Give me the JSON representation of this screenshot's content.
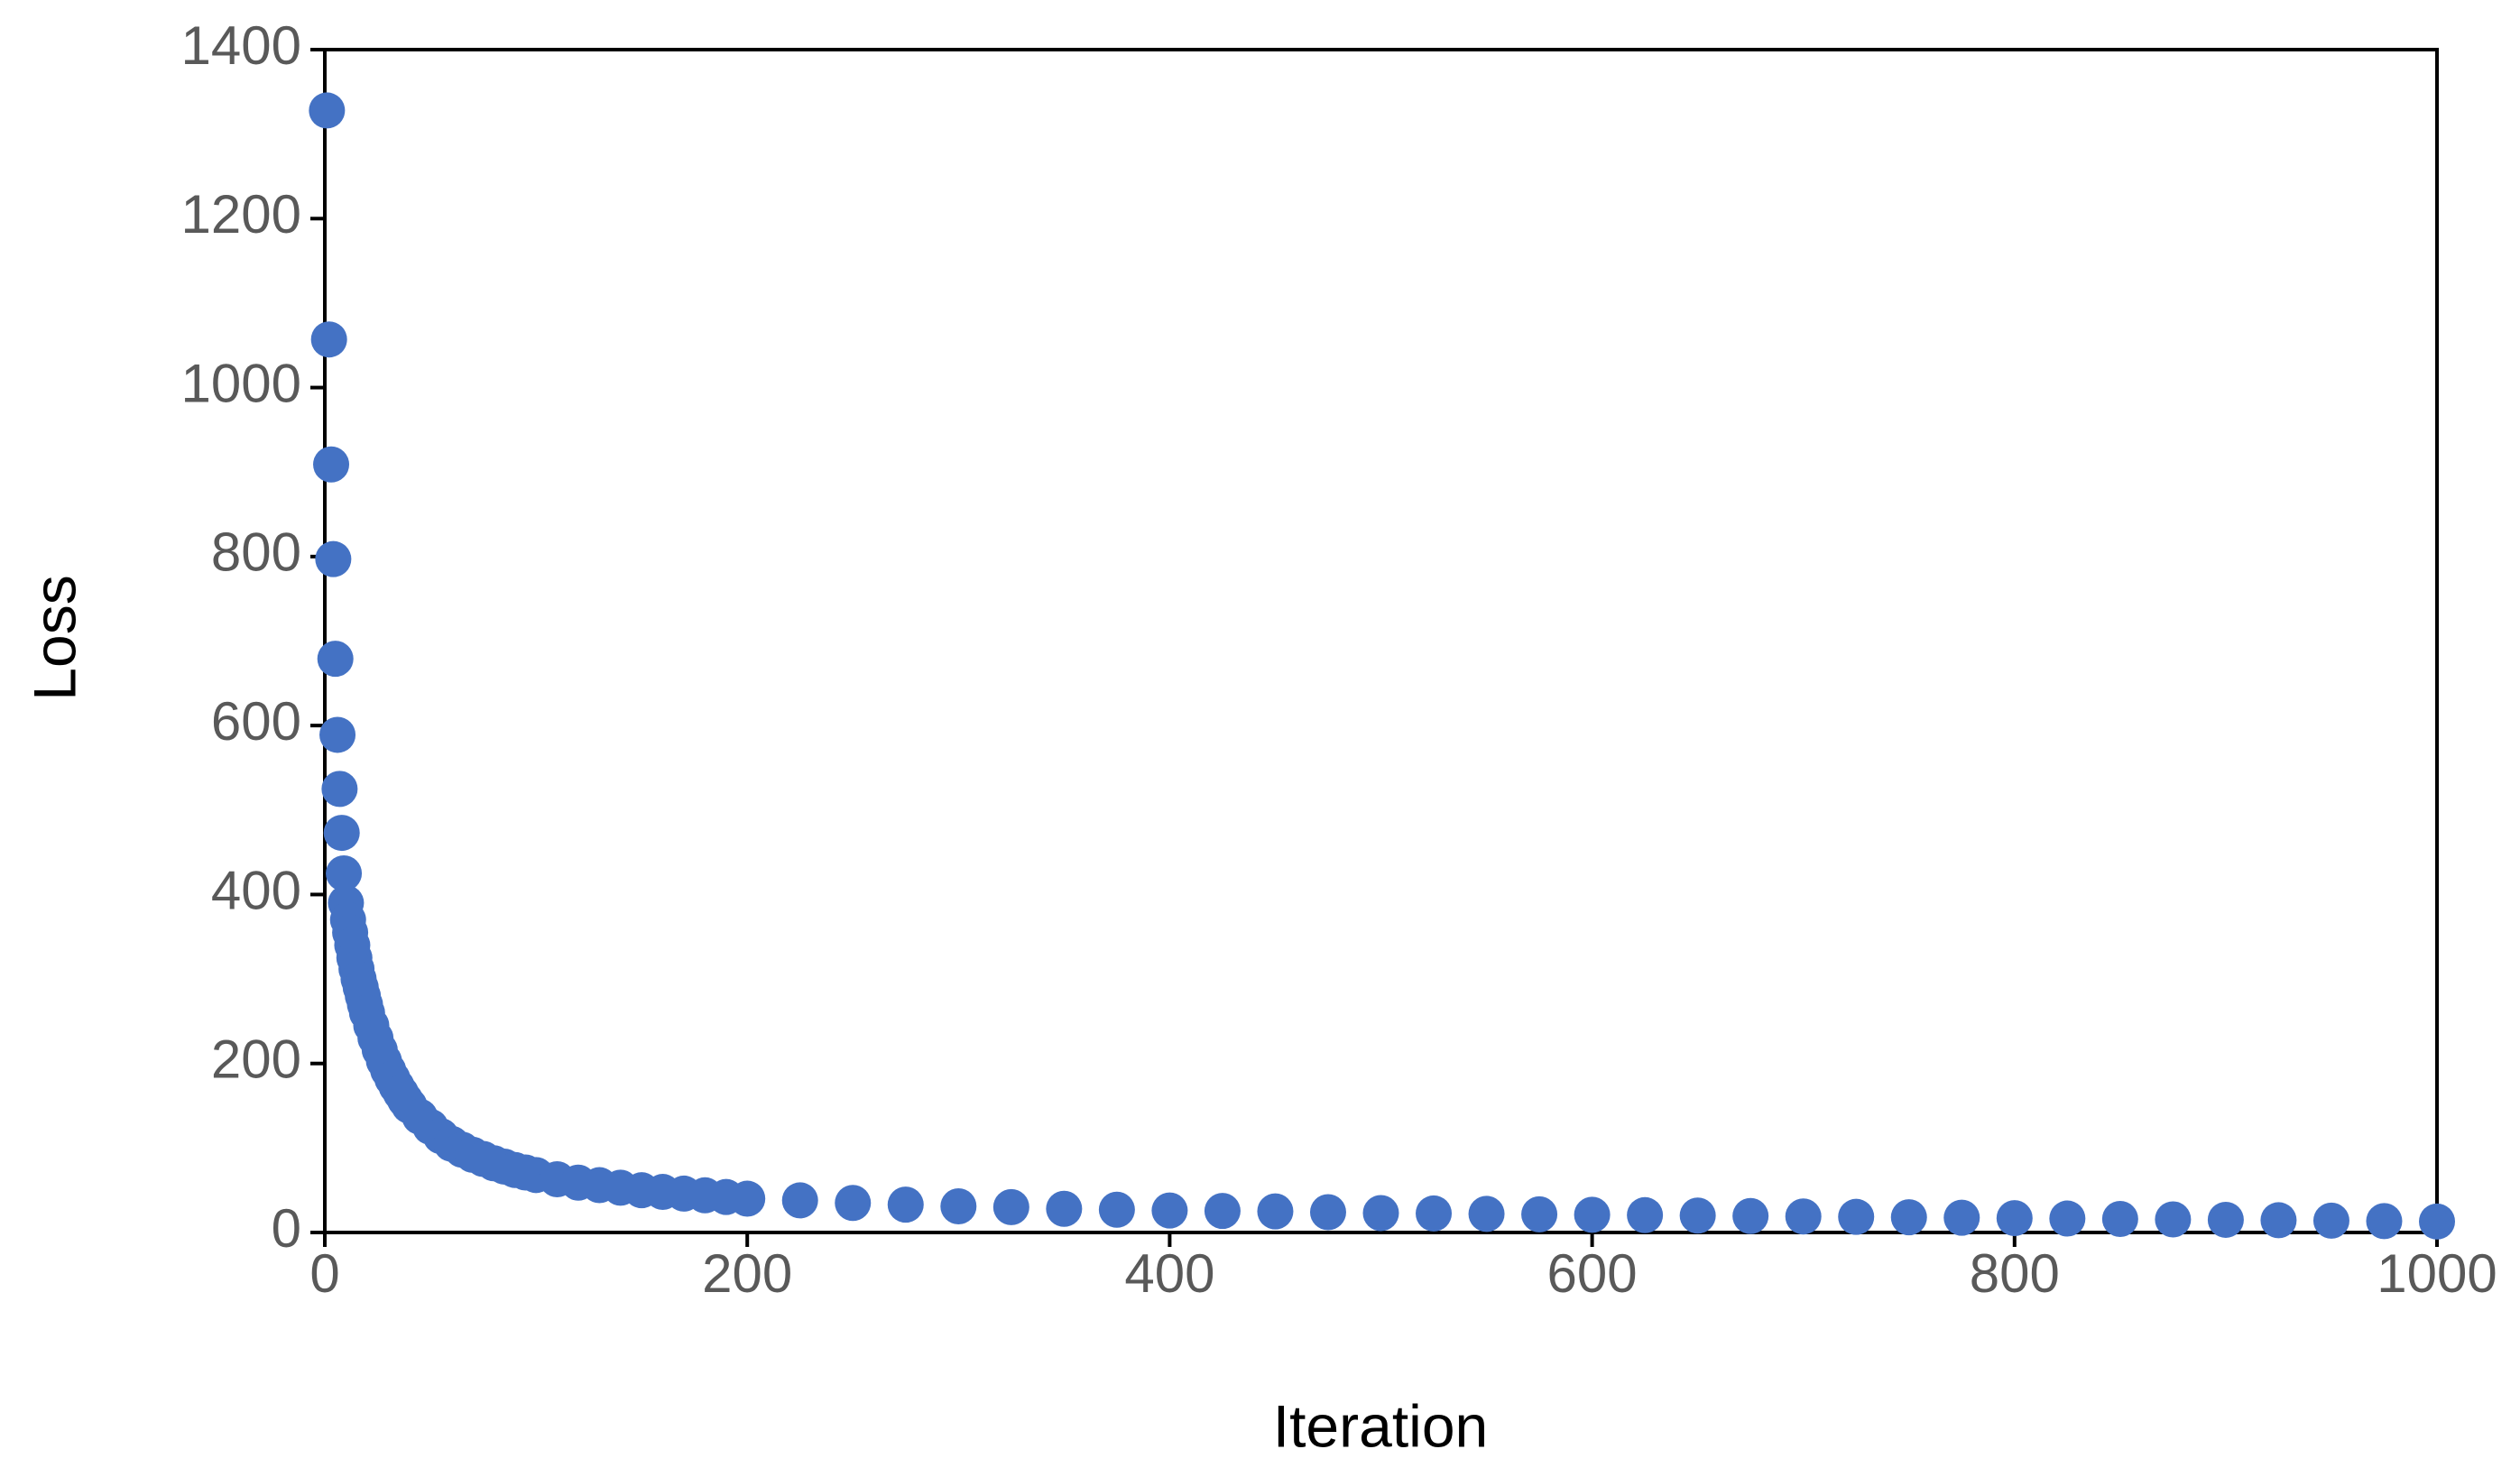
{
  "chart_data": {
    "type": "scatter",
    "x_label": "Iteration",
    "y_label": "Loss",
    "color": "#4472c4",
    "x": [
      1,
      2,
      3,
      4,
      5,
      6,
      7,
      8,
      9,
      10,
      11,
      12,
      13,
      14,
      15,
      16,
      17,
      18,
      19,
      20,
      22,
      24,
      26,
      28,
      30,
      32,
      34,
      36,
      38,
      40,
      45,
      50,
      55,
      60,
      65,
      70,
      75,
      80,
      85,
      90,
      95,
      100,
      110,
      120,
      130,
      140,
      150,
      160,
      170,
      180,
      190,
      200,
      225,
      250,
      275,
      300,
      325,
      350,
      375,
      400,
      425,
      450,
      475,
      500,
      525,
      550,
      575,
      600,
      625,
      650,
      675,
      700,
      725,
      750,
      775,
      800,
      825,
      850,
      875,
      900,
      925,
      950,
      975,
      1000
    ],
    "values": [
      1328,
      1057,
      909,
      797,
      679,
      589,
      525,
      473,
      425,
      390,
      370,
      355,
      340,
      325,
      312,
      300,
      290,
      280,
      270,
      260,
      245,
      230,
      216,
      203,
      192,
      182,
      173,
      165,
      157,
      150,
      137,
      125,
      114,
      105,
      98,
      92,
      87,
      82,
      78,
      74,
      71,
      68,
      63,
      59,
      56,
      53,
      50,
      48,
      46,
      44,
      42,
      40,
      38,
      35,
      33,
      31,
      30,
      28,
      27,
      26,
      25.5,
      25,
      24,
      23,
      22.5,
      22,
      21.5,
      21,
      20.5,
      20,
      19.5,
      19,
      18.5,
      18,
      17.5,
      17,
      16.5,
      16,
      15.5,
      15,
      14.5,
      14,
      13.5,
      13
    ],
    "xlim": [
      0,
      1000
    ],
    "ylim": [
      0,
      1400
    ],
    "xticks": [
      0,
      200,
      400,
      600,
      800,
      1000
    ],
    "yticks": [
      0,
      200,
      400,
      600,
      800,
      1000,
      1200,
      1400
    ]
  }
}
